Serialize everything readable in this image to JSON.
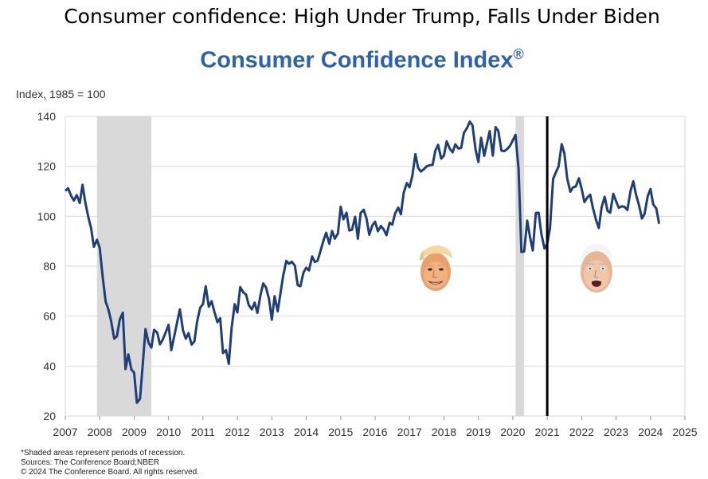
{
  "headline": "Consumer confidence: High Under Trump, Falls Under Biden",
  "chart_title": "Consumer Confidence Index",
  "chart_title_mark": "®",
  "footnotes": {
    "line1": "*Shaded areas represent periods of recession.",
    "line2": "Sources: The Conference Board;NBER",
    "line3": "© 2024 The Conference Board. All rights reserved."
  },
  "colors": {
    "line": "#1f3f78",
    "title": "#2d62ad",
    "recession": "#d9d9d9",
    "grid": "#d9d9d9",
    "marker": "#000000"
  },
  "chart_data": {
    "type": "line",
    "title": "Consumer Confidence Index®",
    "ylabel": "Index, 1985 = 100",
    "xlabel": "",
    "xlim": [
      2007,
      2025
    ],
    "ylim": [
      20,
      140
    ],
    "x_ticks": [
      2007,
      2008,
      2009,
      2010,
      2011,
      2012,
      2013,
      2014,
      2015,
      2016,
      2017,
      2018,
      2019,
      2020,
      2021,
      2022,
      2023,
      2024,
      2025
    ],
    "y_ticks": [
      20,
      40,
      60,
      80,
      100,
      120,
      140
    ],
    "grid": "horizontal",
    "recessions": [
      [
        2007.92,
        2009.5
      ],
      [
        2020.08,
        2020.33
      ]
    ],
    "vertical_marker": 2021.0,
    "annotations": [
      "trump-face-icon",
      "biden-face-icon"
    ],
    "series": [
      {
        "values": [
          [
            2007.0,
            110.2
          ],
          [
            2007.08,
            111.2
          ],
          [
            2007.17,
            108.2
          ],
          [
            2007.25,
            106.3
          ],
          [
            2007.33,
            108.5
          ],
          [
            2007.42,
            105.3
          ],
          [
            2007.5,
            112.6
          ],
          [
            2007.58,
            105.6
          ],
          [
            2007.67,
            99.5
          ],
          [
            2007.75,
            95.2
          ],
          [
            2007.83,
            87.8
          ],
          [
            2007.92,
            90.6
          ],
          [
            2008.0,
            87.3
          ],
          [
            2008.08,
            76.4
          ],
          [
            2008.17,
            65.9
          ],
          [
            2008.25,
            62.8
          ],
          [
            2008.33,
            58.1
          ],
          [
            2008.42,
            51.0
          ],
          [
            2008.5,
            51.9
          ],
          [
            2008.58,
            58.5
          ],
          [
            2008.67,
            61.4
          ],
          [
            2008.75,
            38.8
          ],
          [
            2008.83,
            44.7
          ],
          [
            2008.92,
            38.6
          ],
          [
            2009.0,
            37.4
          ],
          [
            2009.08,
            25.3
          ],
          [
            2009.17,
            26.9
          ],
          [
            2009.25,
            40.8
          ],
          [
            2009.33,
            54.8
          ],
          [
            2009.42,
            49.3
          ],
          [
            2009.5,
            47.4
          ],
          [
            2009.58,
            54.5
          ],
          [
            2009.67,
            53.4
          ],
          [
            2009.75,
            48.7
          ],
          [
            2009.83,
            50.6
          ],
          [
            2009.92,
            53.6
          ],
          [
            2010.0,
            56.5
          ],
          [
            2010.08,
            46.4
          ],
          [
            2010.17,
            52.3
          ],
          [
            2010.25,
            57.7
          ],
          [
            2010.33,
            62.7
          ],
          [
            2010.42,
            54.3
          ],
          [
            2010.5,
            51.0
          ],
          [
            2010.58,
            53.2
          ],
          [
            2010.67,
            48.6
          ],
          [
            2010.75,
            49.9
          ],
          [
            2010.83,
            57.8
          ],
          [
            2010.92,
            63.4
          ],
          [
            2011.0,
            64.8
          ],
          [
            2011.08,
            72.0
          ],
          [
            2011.17,
            63.8
          ],
          [
            2011.25,
            66.0
          ],
          [
            2011.33,
            61.7
          ],
          [
            2011.42,
            57.6
          ],
          [
            2011.5,
            59.2
          ],
          [
            2011.58,
            45.2
          ],
          [
            2011.67,
            46.4
          ],
          [
            2011.75,
            40.9
          ],
          [
            2011.83,
            55.2
          ],
          [
            2011.92,
            64.8
          ],
          [
            2012.0,
            61.5
          ],
          [
            2012.08,
            71.6
          ],
          [
            2012.17,
            69.5
          ],
          [
            2012.25,
            68.7
          ],
          [
            2012.33,
            64.4
          ],
          [
            2012.42,
            62.7
          ],
          [
            2012.5,
            65.4
          ],
          [
            2012.58,
            61.3
          ],
          [
            2012.67,
            68.4
          ],
          [
            2012.75,
            73.1
          ],
          [
            2012.83,
            71.5
          ],
          [
            2012.92,
            66.7
          ],
          [
            2013.0,
            58.6
          ],
          [
            2013.08,
            68.0
          ],
          [
            2013.17,
            61.9
          ],
          [
            2013.25,
            69.0
          ],
          [
            2013.33,
            76.2
          ],
          [
            2013.42,
            82.1
          ],
          [
            2013.5,
            81.0
          ],
          [
            2013.58,
            81.8
          ],
          [
            2013.67,
            80.2
          ],
          [
            2013.75,
            72.4
          ],
          [
            2013.83,
            72.0
          ],
          [
            2013.92,
            77.5
          ],
          [
            2014.0,
            79.4
          ],
          [
            2014.08,
            78.3
          ],
          [
            2014.17,
            83.9
          ],
          [
            2014.25,
            81.7
          ],
          [
            2014.33,
            82.2
          ],
          [
            2014.42,
            86.4
          ],
          [
            2014.5,
            90.3
          ],
          [
            2014.58,
            93.4
          ],
          [
            2014.67,
            89.0
          ],
          [
            2014.75,
            94.1
          ],
          [
            2014.83,
            91.0
          ],
          [
            2014.92,
            93.1
          ],
          [
            2015.0,
            103.8
          ],
          [
            2015.08,
            98.8
          ],
          [
            2015.17,
            101.4
          ],
          [
            2015.25,
            94.3
          ],
          [
            2015.33,
            94.6
          ],
          [
            2015.42,
            99.8
          ],
          [
            2015.5,
            91.0
          ],
          [
            2015.58,
            101.3
          ],
          [
            2015.67,
            102.6
          ],
          [
            2015.75,
            99.1
          ],
          [
            2015.83,
            92.6
          ],
          [
            2015.92,
            96.3
          ],
          [
            2016.0,
            97.8
          ],
          [
            2016.08,
            94.0
          ],
          [
            2016.17,
            96.1
          ],
          [
            2016.25,
            94.7
          ],
          [
            2016.33,
            92.4
          ],
          [
            2016.42,
            97.4
          ],
          [
            2016.5,
            96.7
          ],
          [
            2016.58,
            101.1
          ],
          [
            2016.67,
            103.5
          ],
          [
            2016.75,
            100.8
          ],
          [
            2016.83,
            109.4
          ],
          [
            2016.92,
            113.3
          ],
          [
            2017.0,
            111.6
          ],
          [
            2017.08,
            116.1
          ],
          [
            2017.17,
            124.9
          ],
          [
            2017.25,
            119.4
          ],
          [
            2017.33,
            117.9
          ],
          [
            2017.42,
            118.9
          ],
          [
            2017.5,
            120.0
          ],
          [
            2017.58,
            120.4
          ],
          [
            2017.67,
            120.6
          ],
          [
            2017.75,
            126.2
          ],
          [
            2017.83,
            128.6
          ],
          [
            2017.92,
            123.1
          ],
          [
            2018.0,
            124.3
          ],
          [
            2018.08,
            130.0
          ],
          [
            2018.17,
            127.0
          ],
          [
            2018.25,
            125.6
          ],
          [
            2018.33,
            128.8
          ],
          [
            2018.42,
            127.1
          ],
          [
            2018.5,
            127.4
          ],
          [
            2018.58,
            133.4
          ],
          [
            2018.67,
            135.3
          ],
          [
            2018.75,
            137.9
          ],
          [
            2018.83,
            136.4
          ],
          [
            2018.92,
            126.6
          ],
          [
            2019.0,
            121.7
          ],
          [
            2019.08,
            131.4
          ],
          [
            2019.17,
            124.2
          ],
          [
            2019.25,
            129.2
          ],
          [
            2019.33,
            134.1
          ],
          [
            2019.42,
            124.3
          ],
          [
            2019.5,
            135.7
          ],
          [
            2019.58,
            134.2
          ],
          [
            2019.67,
            126.3
          ],
          [
            2019.75,
            126.1
          ],
          [
            2019.83,
            126.8
          ],
          [
            2019.92,
            128.2
          ],
          [
            2020.0,
            130.4
          ],
          [
            2020.08,
            132.6
          ],
          [
            2020.17,
            118.8
          ],
          [
            2020.25,
            85.7
          ],
          [
            2020.33,
            85.9
          ],
          [
            2020.42,
            98.3
          ],
          [
            2020.5,
            91.7
          ],
          [
            2020.58,
            86.3
          ],
          [
            2020.67,
            101.3
          ],
          [
            2020.75,
            101.4
          ],
          [
            2020.83,
            92.9
          ],
          [
            2020.92,
            87.1
          ],
          [
            2021.0,
            88.9
          ],
          [
            2021.08,
            95.2
          ],
          [
            2021.17,
            114.9
          ],
          [
            2021.25,
            117.5
          ],
          [
            2021.33,
            120.0
          ],
          [
            2021.42,
            128.9
          ],
          [
            2021.5,
            125.1
          ],
          [
            2021.58,
            115.2
          ],
          [
            2021.67,
            109.8
          ],
          [
            2021.75,
            111.6
          ],
          [
            2021.83,
            111.9
          ],
          [
            2021.92,
            115.2
          ],
          [
            2022.0,
            111.1
          ],
          [
            2022.08,
            105.7
          ],
          [
            2022.17,
            107.6
          ],
          [
            2022.25,
            108.6
          ],
          [
            2022.33,
            103.2
          ],
          [
            2022.42,
            98.4
          ],
          [
            2022.5,
            95.3
          ],
          [
            2022.58,
            103.6
          ],
          [
            2022.67,
            107.8
          ],
          [
            2022.75,
            102.2
          ],
          [
            2022.83,
            101.4
          ],
          [
            2022.92,
            109.0
          ],
          [
            2023.0,
            106.0
          ],
          [
            2023.08,
            103.4
          ],
          [
            2023.17,
            104.0
          ],
          [
            2023.25,
            103.7
          ],
          [
            2023.33,
            102.5
          ],
          [
            2023.42,
            110.1
          ],
          [
            2023.5,
            114.0
          ],
          [
            2023.58,
            108.7
          ],
          [
            2023.67,
            104.3
          ],
          [
            2023.75,
            99.1
          ],
          [
            2023.83,
            101.0
          ],
          [
            2023.92,
            108.0
          ],
          [
            2024.0,
            110.9
          ],
          [
            2024.08,
            104.8
          ],
          [
            2024.17,
            103.1
          ],
          [
            2024.25,
            97.0
          ]
        ]
      }
    ]
  }
}
